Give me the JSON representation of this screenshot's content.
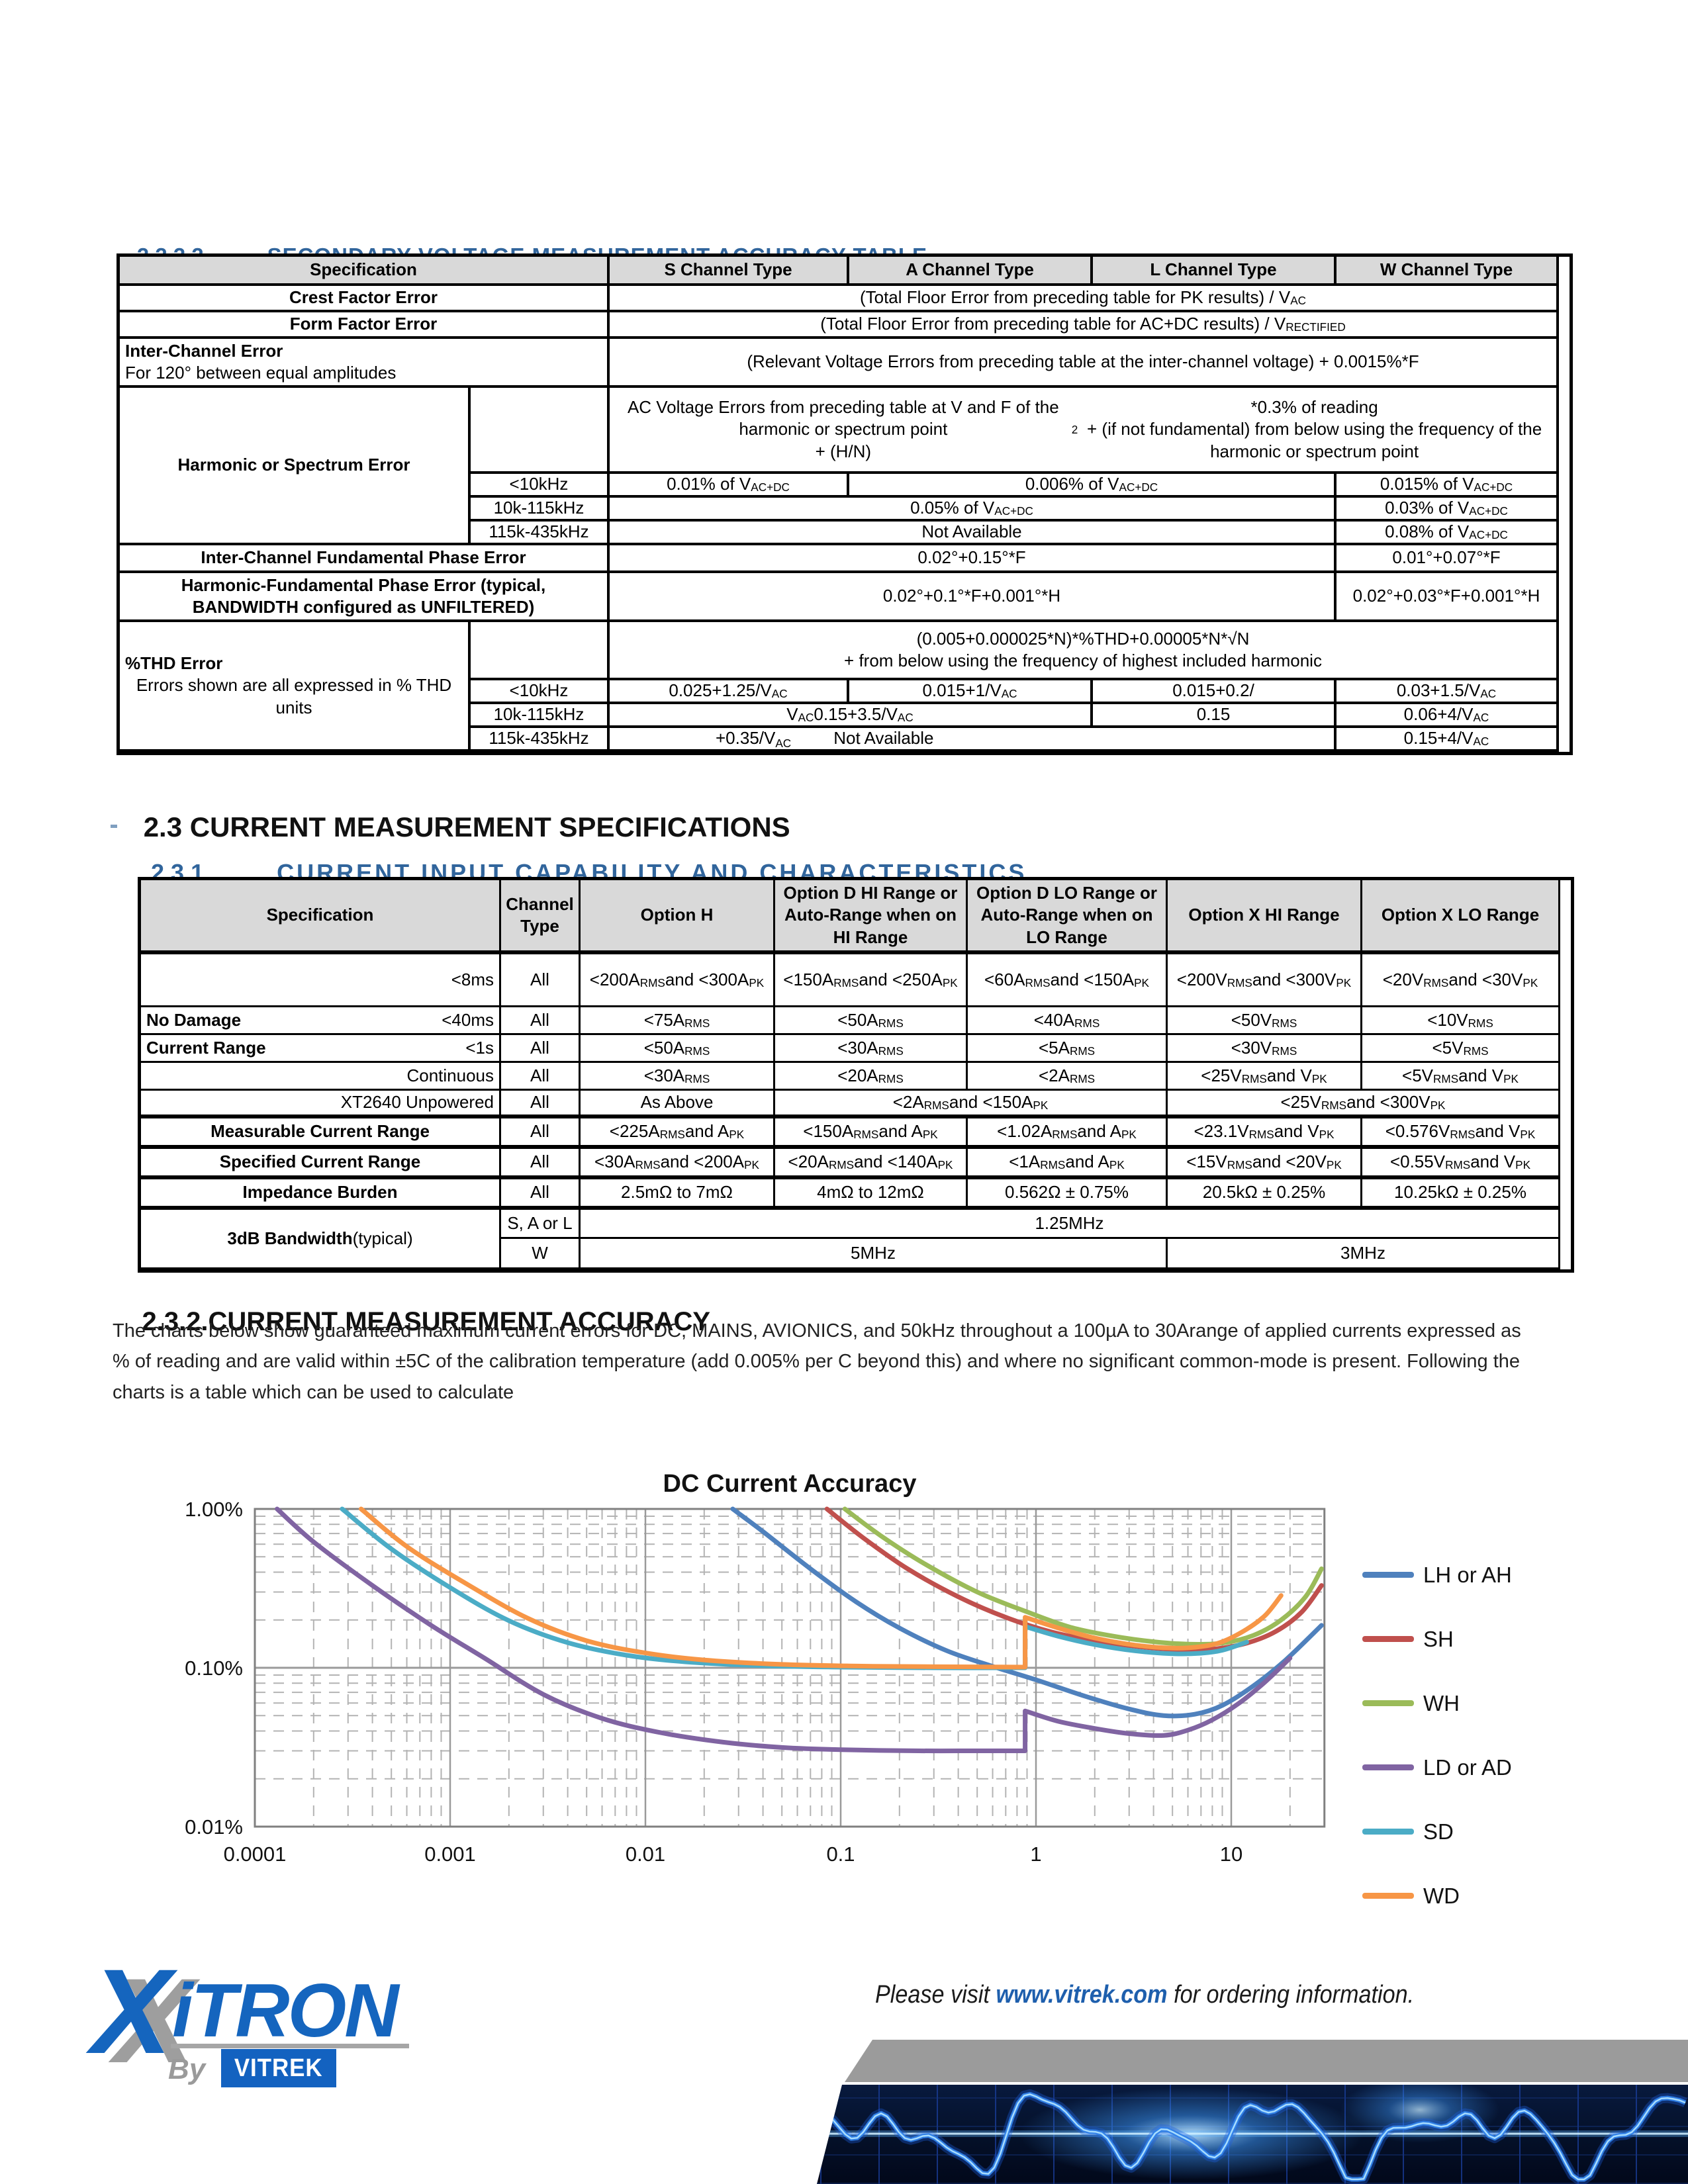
{
  "colors": {
    "heading_blue": "#31659C",
    "table_header_bg": "#D9D9D9",
    "logo_blue": "#1565BE",
    "link_blue": "#1E5FAD"
  },
  "sections": {
    "s2222": {
      "number": "2.2.2.2",
      "title": "SECONDARY VOLTAGE MEASUREMENT ACCURACY TABLE"
    },
    "s23": {
      "number": "2.3",
      "title": "CURRENT MEASUREMENT SPECIFICATIONS"
    },
    "s231": {
      "number": "2.3.1",
      "title": "CURRENT INPUT CAPABILITY AND CHARACTERISTICS"
    },
    "s232": {
      "number": "2.3.2.",
      "title": "CURRENT MEASUREMENT ACCURACY"
    }
  },
  "vt": {
    "headers": [
      "Specification",
      "S Channel Type",
      "A Channel Type",
      "L Channel Type",
      "W Channel Type"
    ],
    "crest": {
      "label": "Crest Factor Error",
      "value": "(Total Floor Error from preceding table for PK results) / V_{AC}"
    },
    "form": {
      "label": "Form Factor Error",
      "value": "(Total Floor Error from preceding table for AC+DC results) / V_{RECTIFIED}"
    },
    "inter": {
      "label": "Inter-Channel Error",
      "note": "For 120° between equal amplitudes",
      "value": "(Relevant Voltage Errors from preceding table at the inter-channel voltage) + 0.0015%*F"
    },
    "harm": {
      "label": "Harmonic or Spectrum Error",
      "intro": "AC Voltage Errors from preceding table at V and F of the harmonic or spectrum point\n+ (H/N)^{2}*0.3% of reading\n+ (if not fundamental) from below using the frequency of the harmonic or spectrum point",
      "rows": [
        {
          "f": "<10kHz",
          "s": "0.01% of V_{AC+DC}",
          "al": "0.006% of V_{AC+DC}",
          "w": "0.015% of V_{AC+DC}"
        },
        {
          "f": "10k-115kHz",
          "sal": "0.05% of V_{AC+DC}",
          "w": "0.03% of V_{AC+DC}"
        },
        {
          "f": "115k-435kHz",
          "sal": "Not Available",
          "w": "0.08% of V_{AC+DC}"
        }
      ]
    },
    "phase": {
      "label": "Inter-Channel Fundamental Phase Error",
      "sal": "0.02°+0.15°*F",
      "w": "0.01°+0.07°*F"
    },
    "hfp": {
      "label": "Harmonic-Fundamental Phase Error (typical,\nBANDWIDTH configured as UNFILTERED)",
      "sal": "0.02°+0.1°*F+0.001°*H",
      "w": "0.02°+0.03°*F+0.001°*H"
    },
    "thd": {
      "label": "%THD Error",
      "note": "Errors shown are all expressed in % THD units",
      "intro": "(0.005+0.000025*N)*%THD+0.00005*N*√N\n+ from below using the frequency of highest included harmonic",
      "rows": [
        {
          "f": "<10kHz",
          "s": "0.025+1.25/V_{AC}",
          "a": "0.015+1/V_{AC}",
          "l": "0.015+0.2/",
          "w": "0.03+1.5/V_{AC}"
        },
        {
          "f": "10k-115kHz",
          "sa": "V_{AC} 0.15+3.5/V_{AC}",
          "l": "0.15",
          "w": "0.06+4/V_{AC}"
        },
        {
          "f": "115k-435kHz",
          "sal_a": "+0.35/V_{AC}",
          "sal_b": "Not Available",
          "w": "0.15+4/V_{AC}"
        }
      ]
    }
  },
  "ct": {
    "headers": [
      "Specification",
      "Channel Type",
      "Option H",
      "Option D HI Range or Auto-Range when on HI Range",
      "Option D LO Range or Auto-Range when on LO Range",
      "Option X HI Range",
      "Option X LO Range"
    ],
    "nodamage": {
      "rows": [
        {
          "group": "",
          "sub": "<8ms",
          "ch": "All",
          "h": "<200A_{RMS} and <300A_{PK}",
          "dhi": "<150A_{RMS} and <250A_{PK}",
          "dlo": "<60A_{RMS} and <150A_{PK}",
          "xhi": "<200V_{RMS} and <300V_{PK}",
          "xlo": "<20V_{RMS} and <30V_{PK}"
        },
        {
          "group": "No Damage",
          "sub": "<40ms",
          "ch": "All",
          "h": "<75A_{RMS}",
          "dhi": "<50A_{RMS}",
          "dlo": "<40A_{RMS}",
          "xhi": "<50V_{RMS}",
          "xlo": "<10V_{RMS}"
        },
        {
          "group": "Current Range",
          "sub": "<1s",
          "ch": "All",
          "h": "<50A_{RMS}",
          "dhi": "<30A_{RMS}",
          "dlo": "<5A_{RMS}",
          "xhi": "<30V_{RMS}",
          "xlo": "<5V_{RMS}"
        },
        {
          "group": "",
          "sub": "Continuous",
          "ch": "All",
          "h": "<30A_{RMS}",
          "dhi": "<20A_{RMS}",
          "dlo": "<2A_{RMS}",
          "xhi": "<25V_{RMS} and V_{PK}",
          "xlo": "<5V_{RMS} and V_{PK}"
        },
        {
          "group": "",
          "sub": "XT2640 Unpowered",
          "ch": "All",
          "h": "As Above",
          "d": "<2A_{RMS} and <150A_{PK}",
          "x": "<25V_{RMS} and <300V_{PK}"
        }
      ]
    },
    "meas": {
      "label": "Measurable Current Range",
      "ch": "All",
      "h": "<225A_{RMS} and A_{PK}",
      "dhi": "<150A_{RMS} and A_{PK}",
      "dlo": "<1.02A_{RMS} and A_{PK}",
      "xhi": "<23.1V_{RMS} and V_{PK}",
      "xlo": "<0.576V_{RMS} and V_{PK}"
    },
    "spec": {
      "label": "Specified Current Range",
      "ch": "All",
      "h": "<30A_{RMS} and <200A_{PK}",
      "dhi": "<20A_{RMS} and <140A_{PK}",
      "dlo": "<1A_{RMS} and A_{PK}",
      "xhi": "<15V_{RMS} and <20V_{PK}",
      "xlo": "<0.55V_{RMS} and V_{PK}"
    },
    "imp": {
      "label": "Impedance Burden",
      "ch": "All",
      "h": "2.5mΩ to 7mΩ",
      "dhi": "4mΩ to 12mΩ",
      "dlo": "0.562Ω ± 0.75%",
      "xhi": "20.5kΩ ± 0.25%",
      "xlo": "10.25kΩ ± 0.25%"
    },
    "bw": {
      "label_bold": "3dB Bandwidth",
      "label_norm": " (typical)",
      "r1": {
        "ch": "S, A or L",
        "all": "1.25MHz"
      },
      "r2": {
        "ch": "W",
        "left": "5MHz",
        "right": "3MHz"
      }
    }
  },
  "para": "The charts below show guaranteed maximum current errors for DC, MAINS, AVIONICS, and 50kHz throughout a 100µA to 30Arange of applied currents expressed as % of reading and are valid within ±5C of the calibration temperature (add 0.005% per C beyond this) and where no significant common-mode is present. Following the charts is a table which can be used to calculate",
  "chart_data": {
    "type": "line",
    "title": "DC Current Accuracy",
    "x_scale": "log",
    "y_scale": "log",
    "x_range": [
      0.0001,
      30
    ],
    "y_range": [
      0.01,
      1.0
    ],
    "x_ticks": [
      "0.0001",
      "0.001",
      "0.01",
      "0.1",
      "1",
      "10"
    ],
    "y_ticks": [
      {
        "label": "1.00%",
        "value": 1.0
      },
      {
        "label": "0.10%",
        "value": 0.1
      },
      {
        "label": "0.01%",
        "value": 0.01
      }
    ],
    "grid": true,
    "legend_position": "right",
    "series": [
      {
        "name": "LH or AH",
        "color": "#4F81BD",
        "points": [
          [
            0.028,
            1.0
          ],
          [
            0.04,
            0.72
          ],
          [
            0.07,
            0.42
          ],
          [
            0.12,
            0.26
          ],
          [
            0.2,
            0.178
          ],
          [
            0.35,
            0.128
          ],
          [
            0.6,
            0.102
          ],
          [
            1,
            0.084
          ],
          [
            1.8,
            0.066
          ],
          [
            3,
            0.055
          ],
          [
            4.5,
            0.05
          ],
          [
            6.5,
            0.051
          ],
          [
            9,
            0.058
          ],
          [
            13,
            0.077
          ],
          [
            19,
            0.112
          ],
          [
            29,
            0.185
          ]
        ]
      },
      {
        "name": "SH",
        "color": "#C0504D",
        "points": [
          [
            0.085,
            1.0
          ],
          [
            0.13,
            0.66
          ],
          [
            0.22,
            0.42
          ],
          [
            0.4,
            0.28
          ],
          [
            0.7,
            0.208
          ],
          [
            1.2,
            0.168
          ],
          [
            2,
            0.148
          ],
          [
            3.5,
            0.135
          ],
          [
            5.5,
            0.13
          ],
          [
            8,
            0.131
          ],
          [
            12,
            0.143
          ],
          [
            17,
            0.17
          ],
          [
            23,
            0.225
          ],
          [
            29,
            0.33
          ]
        ]
      },
      {
        "name": "WH",
        "color": "#9BBB59",
        "points": [
          [
            0.105,
            1.0
          ],
          [
            0.16,
            0.68
          ],
          [
            0.27,
            0.45
          ],
          [
            0.5,
            0.3
          ],
          [
            0.9,
            0.225
          ],
          [
            1.5,
            0.18
          ],
          [
            2.5,
            0.158
          ],
          [
            4,
            0.146
          ],
          [
            6,
            0.141
          ],
          [
            9,
            0.143
          ],
          [
            13,
            0.16
          ],
          [
            18,
            0.2
          ],
          [
            24,
            0.28
          ],
          [
            29,
            0.42
          ]
        ]
      },
      {
        "name": "LD or AD",
        "color": "#8064A2",
        "points": [
          [
            0.00013,
            1.0
          ],
          [
            0.0002,
            0.62
          ],
          [
            0.0004,
            0.33
          ],
          [
            0.0008,
            0.185
          ],
          [
            0.0015,
            0.115
          ],
          [
            0.003,
            0.068
          ],
          [
            0.006,
            0.048
          ],
          [
            0.012,
            0.039
          ],
          [
            0.025,
            0.034
          ],
          [
            0.05,
            0.0315
          ],
          [
            0.1,
            0.0305
          ],
          [
            0.25,
            0.03
          ],
          [
            0.5,
            0.03
          ],
          [
            0.88,
            0.03
          ],
          [
            0.88,
            0.0535
          ],
          [
            1.3,
            0.046
          ],
          [
            2,
            0.0415
          ],
          [
            3,
            0.0385
          ],
          [
            4.5,
            0.0375
          ],
          [
            6,
            0.0405
          ],
          [
            8,
            0.047
          ],
          [
            11,
            0.06
          ],
          [
            15,
            0.082
          ],
          [
            20,
            0.115
          ]
        ]
      },
      {
        "name": "SD",
        "color": "#4BACC6",
        "points": [
          [
            0.00028,
            1.0
          ],
          [
            0.0005,
            0.56
          ],
          [
            0.001,
            0.32
          ],
          [
            0.002,
            0.198
          ],
          [
            0.004,
            0.144
          ],
          [
            0.008,
            0.12
          ],
          [
            0.016,
            0.109
          ],
          [
            0.04,
            0.103
          ],
          [
            0.1,
            0.101
          ],
          [
            0.3,
            0.1
          ],
          [
            0.88,
            0.1
          ],
          [
            0.88,
            0.182
          ],
          [
            1.3,
            0.158
          ],
          [
            2,
            0.14
          ],
          [
            3.2,
            0.128
          ],
          [
            5,
            0.1225
          ],
          [
            7,
            0.1235
          ],
          [
            9,
            0.129
          ],
          [
            12,
            0.145
          ]
        ]
      },
      {
        "name": "WD",
        "color": "#F79646",
        "points": [
          [
            0.00035,
            1.0
          ],
          [
            0.0006,
            0.58
          ],
          [
            0.0012,
            0.34
          ],
          [
            0.0025,
            0.205
          ],
          [
            0.005,
            0.148
          ],
          [
            0.01,
            0.124
          ],
          [
            0.02,
            0.112
          ],
          [
            0.05,
            0.105
          ],
          [
            0.12,
            0.1025
          ],
          [
            0.3,
            0.1015
          ],
          [
            0.88,
            0.101
          ],
          [
            0.88,
            0.208
          ],
          [
            1.3,
            0.178
          ],
          [
            2,
            0.154
          ],
          [
            3.2,
            0.139
          ],
          [
            5,
            0.133
          ],
          [
            7,
            0.136
          ],
          [
            9,
            0.146
          ],
          [
            12,
            0.175
          ],
          [
            15,
            0.215
          ],
          [
            18,
            0.285
          ]
        ]
      }
    ]
  },
  "footer": {
    "logo": {
      "x": "X",
      "itron": "iTRON",
      "by": "By",
      "vitrek": "VITREK"
    },
    "note_prefix": "Please visit ",
    "note_link": "www.vitrek.com",
    "note_suffix": " for ordering information."
  }
}
